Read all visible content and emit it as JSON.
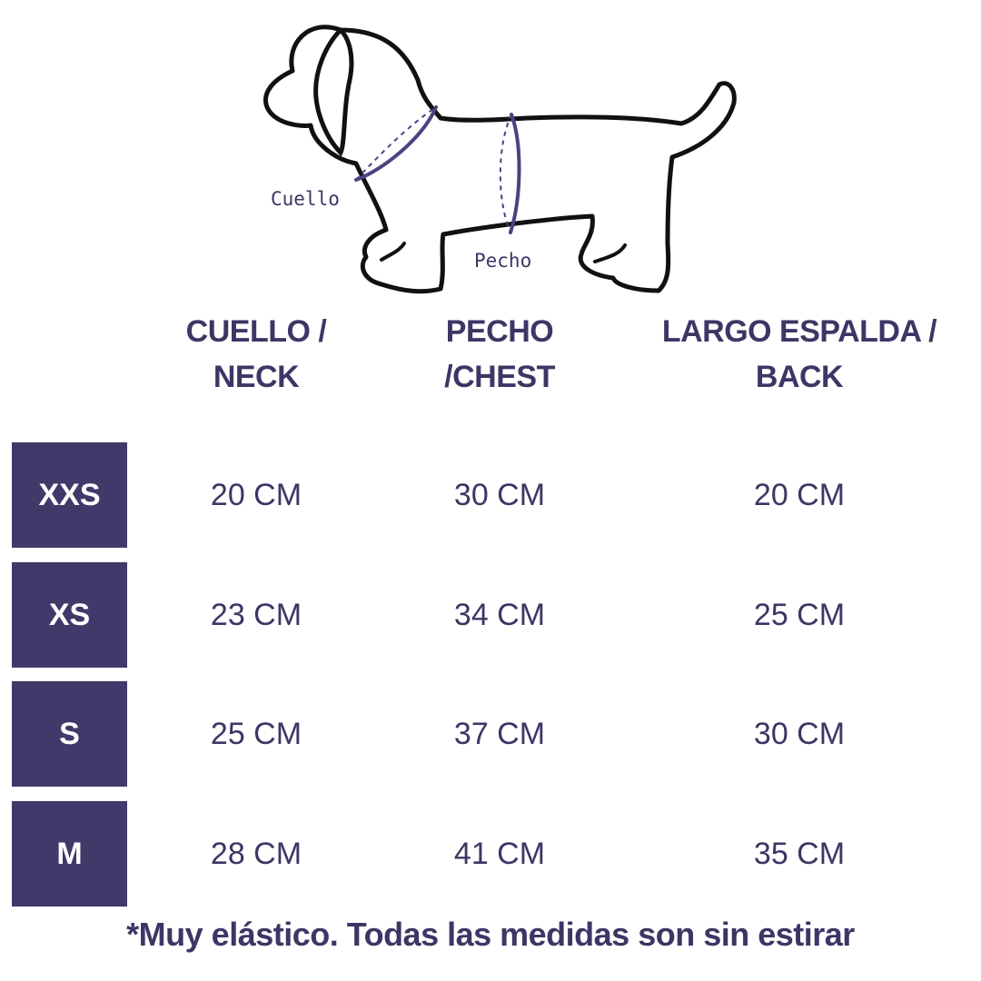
{
  "diagram": {
    "neck_label": "Cuello",
    "chest_label": "Pecho",
    "accent_color": "#4a4380"
  },
  "table": {
    "headers": [
      {
        "line1": "CUELLO /",
        "line2": "NECK"
      },
      {
        "line1": "PECHO",
        "line2": "/CHEST"
      },
      {
        "line1": "LARGO ESPALDA /",
        "line2": "BACK"
      }
    ],
    "rows": [
      {
        "size": "XXS",
        "neck": "20 CM",
        "chest": "30 CM",
        "back": "20 CM"
      },
      {
        "size": "XS",
        "neck": "23 CM",
        "chest": "34 CM",
        "back": "25 CM"
      },
      {
        "size": "S",
        "neck": "25 CM",
        "chest": "37 CM",
        "back": "30 CM"
      },
      {
        "size": "M",
        "neck": "28 CM",
        "chest": "41 CM",
        "back": "35 CM"
      }
    ]
  },
  "footnote": "*Muy elástico. Todas las medidas son sin estirar",
  "colors": {
    "text": "#3d3665",
    "size_box": "#40396a",
    "size_text": "#ffffff",
    "background": "#ffffff"
  }
}
